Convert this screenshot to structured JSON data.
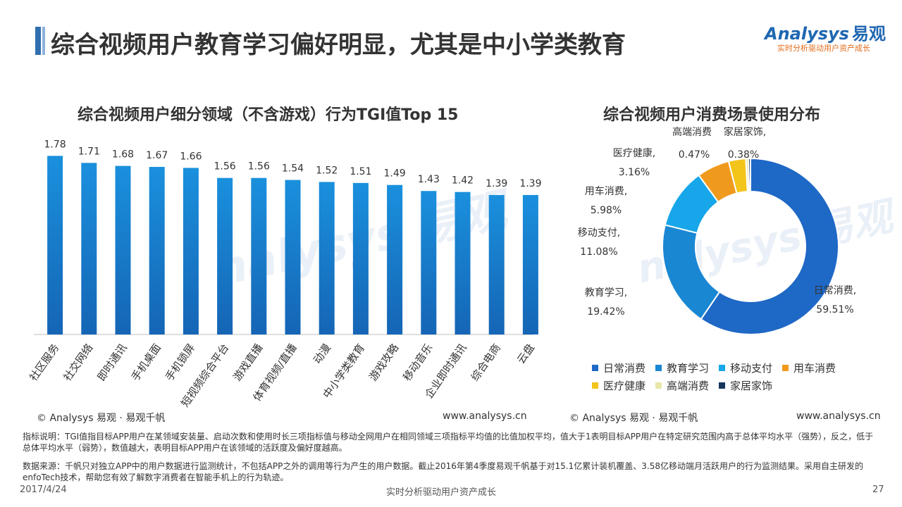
{
  "page": {
    "title": "综合视频用户教育学习偏好明显，尤其是中小学类教育",
    "logo_text": "nalysys",
    "logo_initial": "A",
    "logo_cn": "易观",
    "logo_tagline": "实时分析驱动用户资产成长",
    "watermark_text": "nalysys 易观",
    "watermark_text2": "实时分析驱动用户资产成长"
  },
  "chart_data": [
    {
      "type": "bar",
      "title": "综合视频用户细分领域（不含游戏）行为TGI值Top 15",
      "categories": [
        "社区服务",
        "社交网络",
        "即时通讯",
        "手机桌面",
        "手机锁屏",
        "短视频综合平台",
        "游戏直播",
        "体育视频/直播",
        "动漫",
        "中小学类教育",
        "游戏攻略",
        "移动音乐",
        "企业即时通讯",
        "综合电商",
        "云盘"
      ],
      "values": [
        1.78,
        1.71,
        1.68,
        1.67,
        1.66,
        1.56,
        1.56,
        1.54,
        1.52,
        1.51,
        1.49,
        1.43,
        1.42,
        1.39,
        1.39
      ],
      "value_labels": [
        "1.78",
        "1.71",
        "1.68",
        "1.67",
        "1.66",
        "1.56",
        "1.56",
        "1.54",
        "1.52",
        "1.51",
        "1.49",
        "1.43",
        "1.42",
        "1.39",
        "1.39"
      ],
      "ylim": [
        0,
        2.0
      ],
      "color": "#1a78c8",
      "grid": false
    },
    {
      "type": "pie",
      "subtype": "donut",
      "title": "综合视频用户消费场景使用分布",
      "labels": [
        "日常消费",
        "教育学习",
        "移动支付",
        "用车消费",
        "医疗健康",
        "高端消费",
        "家居家饰"
      ],
      "values": [
        59.51,
        19.42,
        11.08,
        5.98,
        3.16,
        0.47,
        0.38
      ],
      "value_labels": [
        "59.51%",
        "19.42%",
        "11.08%",
        "5.98%",
        "3.16%",
        "0.47%",
        "0.38%"
      ],
      "colors": [
        "#1e68c6",
        "#1a87d3",
        "#16a6e9",
        "#f09a1d",
        "#f3c41a",
        "#e8e6a8",
        "#17365d"
      ],
      "legend_position": "bottom"
    }
  ],
  "credits": {
    "left": "© Analysys 易观 · 易观千帆",
    "left_url": "www.analysys.cn",
    "right": "© Analysys 易观 · 易观千帆",
    "right_url": "www.analysys.cn"
  },
  "notes": {
    "indicator": "指标说明：TGI值指目标APP用户在某领域安装量、启动次数和使用时长三项指标值与移动全网用户在相同领域三项指标平均值的比值加权平均，值大于1表明目标APP用户在特定研究范围内高于总体平均水平（强势），反之，低于总体平均水平（弱势），数值越大，表明目标APP用户在该领域的活跃度及偏好度越高。",
    "source": "数据来源：千帆只对独立APP中的用户数据进行监测统计，不包括APP之外的调用等行为产生的用户数据。截止2016年第4季度易观千帆基于对15.1亿累计装机覆盖、3.58亿移动端月活跃用户的行为监测结果。采用自主研发的enfoTech技术，帮助您有效了解数字消费者在智能手机上的行为轨迹。"
  },
  "footer": {
    "date": "2017/4/24",
    "tagline": "实时分析驱动用户资产成长",
    "page_number": "27"
  }
}
